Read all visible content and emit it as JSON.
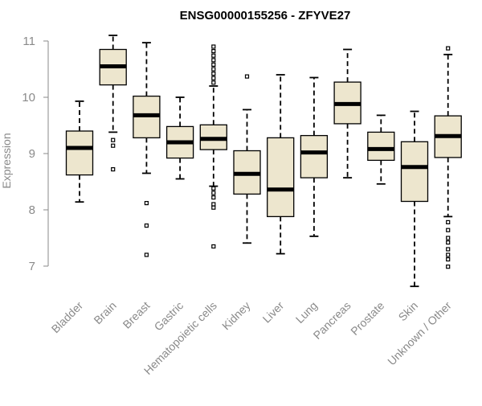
{
  "chart_data": {
    "type": "boxplot",
    "title": "ENSG00000155256 - ZFYVE27",
    "xlabel": "",
    "ylabel": "Expression",
    "ylim": [
      6.5,
      11.2
    ],
    "yticks": [
      7,
      8,
      9,
      10,
      11
    ],
    "colors": {
      "box_fill": "#EDE6CE",
      "line": "#000000",
      "axis": "#8a8a8a"
    },
    "categories": [
      "Bladder",
      "Brain",
      "Breast",
      "Gastric",
      "Hematopoietic cells",
      "Kidney",
      "Liver",
      "Lung",
      "Pancreas",
      "Prostate",
      "Skin",
      "Unknown / Other"
    ],
    "boxes": [
      {
        "label": "Bladder",
        "whisker_low": 8.14,
        "q1": 8.62,
        "median": 9.1,
        "q3": 9.4,
        "whisker_high": 9.93,
        "outliers": []
      },
      {
        "label": "Brain",
        "whisker_low": 9.38,
        "q1": 10.22,
        "median": 10.55,
        "q3": 10.85,
        "whisker_high": 11.1,
        "outliers": [
          9.24,
          9.14,
          8.72
        ]
      },
      {
        "label": "Breast",
        "whisker_low": 8.65,
        "q1": 9.28,
        "median": 9.68,
        "q3": 10.02,
        "whisker_high": 10.97,
        "outliers": [
          8.12,
          7.72,
          7.2
        ]
      },
      {
        "label": "Gastric",
        "whisker_low": 8.55,
        "q1": 8.92,
        "median": 9.2,
        "q3": 9.48,
        "whisker_high": 10.0,
        "outliers": []
      },
      {
        "label": "Hematopoietic cells",
        "whisker_low": 8.42,
        "q1": 9.07,
        "median": 9.26,
        "q3": 9.51,
        "whisker_high": 10.2,
        "outliers": [
          10.9,
          10.82,
          10.74,
          10.66,
          10.58,
          10.5,
          10.42,
          10.34,
          10.26,
          8.38,
          8.3,
          8.22,
          8.1,
          8.04,
          7.35
        ]
      },
      {
        "label": "Kidney",
        "whisker_low": 7.41,
        "q1": 8.28,
        "median": 8.64,
        "q3": 9.05,
        "whisker_high": 9.78,
        "outliers": [
          10.37
        ]
      },
      {
        "label": "Liver",
        "whisker_low": 7.22,
        "q1": 7.88,
        "median": 8.36,
        "q3": 9.28,
        "whisker_high": 10.4,
        "outliers": []
      },
      {
        "label": "Lung",
        "whisker_low": 7.53,
        "q1": 8.57,
        "median": 9.02,
        "q3": 9.32,
        "whisker_high": 10.35,
        "outliers": []
      },
      {
        "label": "Pancreas",
        "whisker_low": 8.57,
        "q1": 9.53,
        "median": 9.88,
        "q3": 10.27,
        "whisker_high": 10.85,
        "outliers": []
      },
      {
        "label": "Prostate",
        "whisker_low": 8.46,
        "q1": 8.88,
        "median": 9.08,
        "q3": 9.38,
        "whisker_high": 9.68,
        "outliers": []
      },
      {
        "label": "Skin",
        "whisker_low": 6.64,
        "q1": 8.15,
        "median": 8.76,
        "q3": 9.21,
        "whisker_high": 9.75,
        "outliers": []
      },
      {
        "label": "Unknown / Other",
        "whisker_low": 7.88,
        "q1": 8.93,
        "median": 9.31,
        "q3": 9.67,
        "whisker_high": 10.76,
        "outliers": [
          10.87,
          7.78,
          7.64,
          7.5,
          7.42,
          7.3,
          7.2,
          7.12,
          6.99
        ]
      }
    ]
  }
}
